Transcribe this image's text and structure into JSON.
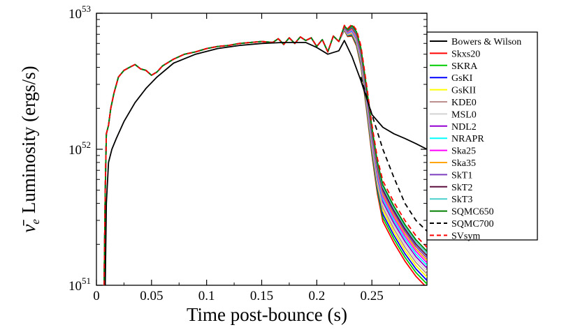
{
  "chart_data": {
    "type": "line",
    "title": "",
    "xlabel": "Time post-bounce (s)",
    "ylabel_symbol": "ν̄",
    "ylabel_subscript": "e",
    "ylabel_text": "Luminosity (ergs/s)",
    "xlim": [
      0,
      0.3
    ],
    "ylim": [
      1e+51,
      1e+53
    ],
    "yscale": "log",
    "x_ticks": [
      {
        "value": 0,
        "label": "0"
      },
      {
        "value": 0.05,
        "label": "0.05"
      },
      {
        "value": 0.1,
        "label": "0.1"
      },
      {
        "value": 0.15,
        "label": "0.15"
      },
      {
        "value": 0.2,
        "label": "0.2"
      },
      {
        "value": 0.25,
        "label": "0.25"
      }
    ],
    "y_ticks": [
      {
        "value": 1e+51,
        "base": "10",
        "exp": "51"
      },
      {
        "value": 1e+52,
        "base": "10",
        "exp": "52"
      },
      {
        "value": 1e+53,
        "base": "10",
        "exp": "53"
      }
    ],
    "legend_position": "right-outside",
    "series": [
      {
        "name": "Bowers & Wilson",
        "color": "#000000",
        "dash": "solid",
        "x": [
          0.008,
          0.009,
          0.011,
          0.014,
          0.018,
          0.025,
          0.035,
          0.045,
          0.055,
          0.07,
          0.09,
          0.11,
          0.13,
          0.15,
          0.17,
          0.19,
          0.2,
          0.21,
          0.22,
          0.225,
          0.232,
          0.24,
          0.25,
          0.26,
          0.27,
          0.28,
          0.29,
          0.3
        ],
        "y": [
          1e+51,
          4e+51,
          8e+51,
          1e+52,
          1.2e+52,
          1.6e+52,
          2.2e+52,
          2.8e+52,
          3.4e+52,
          4.3e+52,
          5e+52,
          5.5e+52,
          5.8e+52,
          6e+52,
          6.1e+52,
          6.1e+52,
          5.6e+52,
          5e+52,
          5.3e+52,
          6.3e+52,
          4.8e+52,
          3.2e+52,
          1.8e+52,
          1.45e+52,
          1.3e+52,
          1.2e+52,
          1.1e+52,
          1e+52
        ]
      },
      {
        "name": "Skxs20",
        "color": "#ff0000",
        "dash": "solid",
        "x": [],
        "y": []
      },
      {
        "name": "SKRA",
        "color": "#00cc00",
        "dash": "solid",
        "x": [],
        "y": []
      },
      {
        "name": "GsKI",
        "color": "#0000ff",
        "dash": "solid",
        "x": [],
        "y": []
      },
      {
        "name": "GsKII",
        "color": "#ffff00",
        "dash": "solid",
        "x": [],
        "y": []
      },
      {
        "name": "KDE0",
        "color": "#bc8f8f",
        "dash": "solid",
        "x": [],
        "y": []
      },
      {
        "name": "MSL0",
        "color": "#d3d3d3",
        "dash": "solid",
        "x": [],
        "y": []
      },
      {
        "name": "NDL2",
        "color": "#9400d3",
        "dash": "solid",
        "x": [],
        "y": []
      },
      {
        "name": "NRAPR",
        "color": "#00ffff",
        "dash": "solid",
        "x": [],
        "y": []
      },
      {
        "name": "Ska25",
        "color": "#ff00ff",
        "dash": "solid",
        "x": [],
        "y": []
      },
      {
        "name": "Ska35",
        "color": "#ffa500",
        "dash": "solid",
        "x": [],
        "y": []
      },
      {
        "name": "SkT1",
        "color": "#7b3fbf",
        "dash": "solid",
        "x": [],
        "y": []
      },
      {
        "name": "SkT2",
        "color": "#5a0f3c",
        "dash": "solid",
        "x": [],
        "y": []
      },
      {
        "name": "SkT3",
        "color": "#48d1cc",
        "dash": "solid",
        "x": [],
        "y": []
      },
      {
        "name": "SQMC650",
        "color": "#008000",
        "dash": "solid",
        "x": [],
        "y": []
      },
      {
        "name": "SQMC700",
        "color": "#000000",
        "dash": "dashed",
        "x": [
          0.24,
          0.25,
          0.26,
          0.27,
          0.28,
          0.29,
          0.3
        ],
        "y": [
          3.4e+52,
          1.8e+52,
          1e+52,
          6.2e+51,
          4e+51,
          3e+51,
          2.5e+51
        ]
      },
      {
        "name": "SVsym",
        "color": "#ff0000",
        "dash": "dashed",
        "x": [],
        "y": []
      }
    ],
    "common_curve": {
      "x": [
        0.007,
        0.008,
        0.009,
        0.011,
        0.013,
        0.016,
        0.02,
        0.025,
        0.03,
        0.035,
        0.04,
        0.045,
        0.05,
        0.055,
        0.06,
        0.07,
        0.08,
        0.09,
        0.1,
        0.11,
        0.12,
        0.13,
        0.14,
        0.15,
        0.16,
        0.165,
        0.17,
        0.175,
        0.18,
        0.185,
        0.19,
        0.195,
        0.2,
        0.205,
        0.21,
        0.215,
        0.22,
        0.225,
        0.228,
        0.232,
        0.236,
        0.24,
        0.245,
        0.25,
        0.255,
        0.26,
        0.27,
        0.28,
        0.29,
        0.3
      ],
      "y": [
        1e+51,
        5e+51,
        1.3e+52,
        1.5e+52,
        2e+52,
        2.6e+52,
        3.4e+52,
        3.8e+52,
        4e+52,
        4.2e+52,
        3.9e+52,
        3.8e+52,
        3.5e+52,
        3.7e+52,
        4.1e+52,
        4.6e+52,
        5e+52,
        5.2e+52,
        5.5e+52,
        5.7e+52,
        5.8e+52,
        6e+52,
        6.1e+52,
        6.2e+52,
        6.1e+52,
        6.5e+52,
        5.9e+52,
        6.6e+52,
        6e+52,
        6.7e+52,
        6.3e+52,
        6.6e+52,
        5.7e+52,
        6.4e+52,
        5.2e+52,
        6.8e+52,
        6.2e+52,
        7.8e+52,
        7.2e+52,
        7.5e+52,
        6.6e+52,
        4.9e+52,
        2.5e+52,
        1.2e+52,
        6.5e+51,
        4.3e+51,
        3e+51,
        2.2e+51,
        1.7e+51,
        1.4e+51
      ]
    }
  }
}
